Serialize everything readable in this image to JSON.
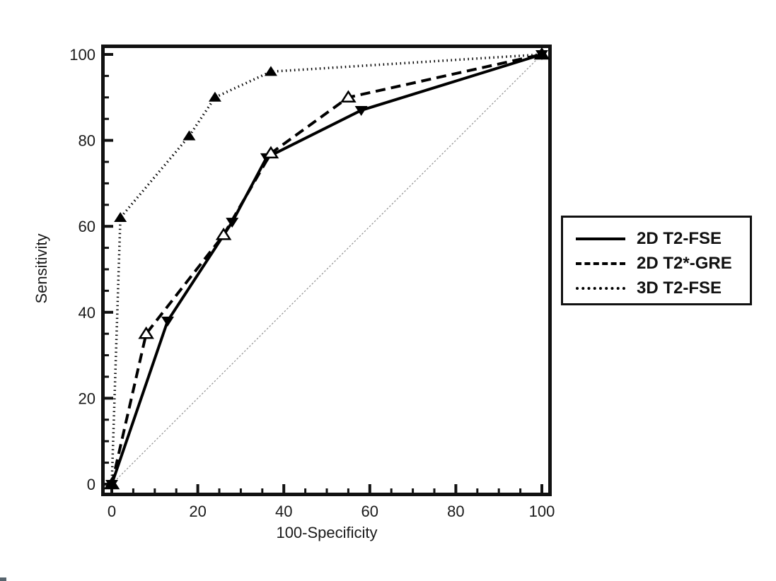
{
  "figure": {
    "background": "#ffffff",
    "axis_color": "#111111",
    "series_color": "#000000",
    "reference_line_color": "#909090",
    "text_color": "#1a1a1a"
  },
  "chart_data": {
    "type": "line",
    "title": "",
    "xlabel": "100-Specificity",
    "ylabel": "Sensitivity",
    "xlim": [
      0,
      100
    ],
    "ylim": [
      0,
      100
    ],
    "x_ticks": [
      0,
      20,
      40,
      60,
      80,
      100
    ],
    "y_ticks": [
      0,
      20,
      40,
      60,
      80,
      100
    ],
    "minor_tick_step": 5,
    "grid": false,
    "reference_line": {
      "from": [
        0,
        0
      ],
      "to": [
        100,
        100
      ],
      "style": "thin-dotted-gray"
    },
    "series": [
      {
        "name": "2D T2-FSE",
        "line_style": "solid",
        "marker": "filled-down-triangle",
        "color": "#000000",
        "points": [
          [
            0,
            0
          ],
          [
            13,
            38
          ],
          [
            28,
            61
          ],
          [
            36,
            76
          ],
          [
            58,
            87
          ],
          [
            100,
            100
          ]
        ]
      },
      {
        "name": "2D T2*-GRE",
        "line_style": "dashed",
        "marker": "open-up-triangle",
        "color": "#000000",
        "points": [
          [
            0,
            0
          ],
          [
            8,
            35
          ],
          [
            26,
            58
          ],
          [
            37,
            77
          ],
          [
            55,
            90
          ],
          [
            100,
            100
          ]
        ]
      },
      {
        "name": "3D T2-FSE",
        "line_style": "dotted",
        "marker": "filled-up-triangle",
        "color": "#000000",
        "points": [
          [
            0,
            0
          ],
          [
            2,
            62
          ],
          [
            18,
            81
          ],
          [
            24,
            90
          ],
          [
            37,
            96
          ],
          [
            100,
            100
          ]
        ]
      }
    ],
    "legend": {
      "position": "right",
      "entries": [
        "2D T2-FSE",
        "2D T2*-GRE",
        "3D T2-FSE"
      ]
    }
  }
}
